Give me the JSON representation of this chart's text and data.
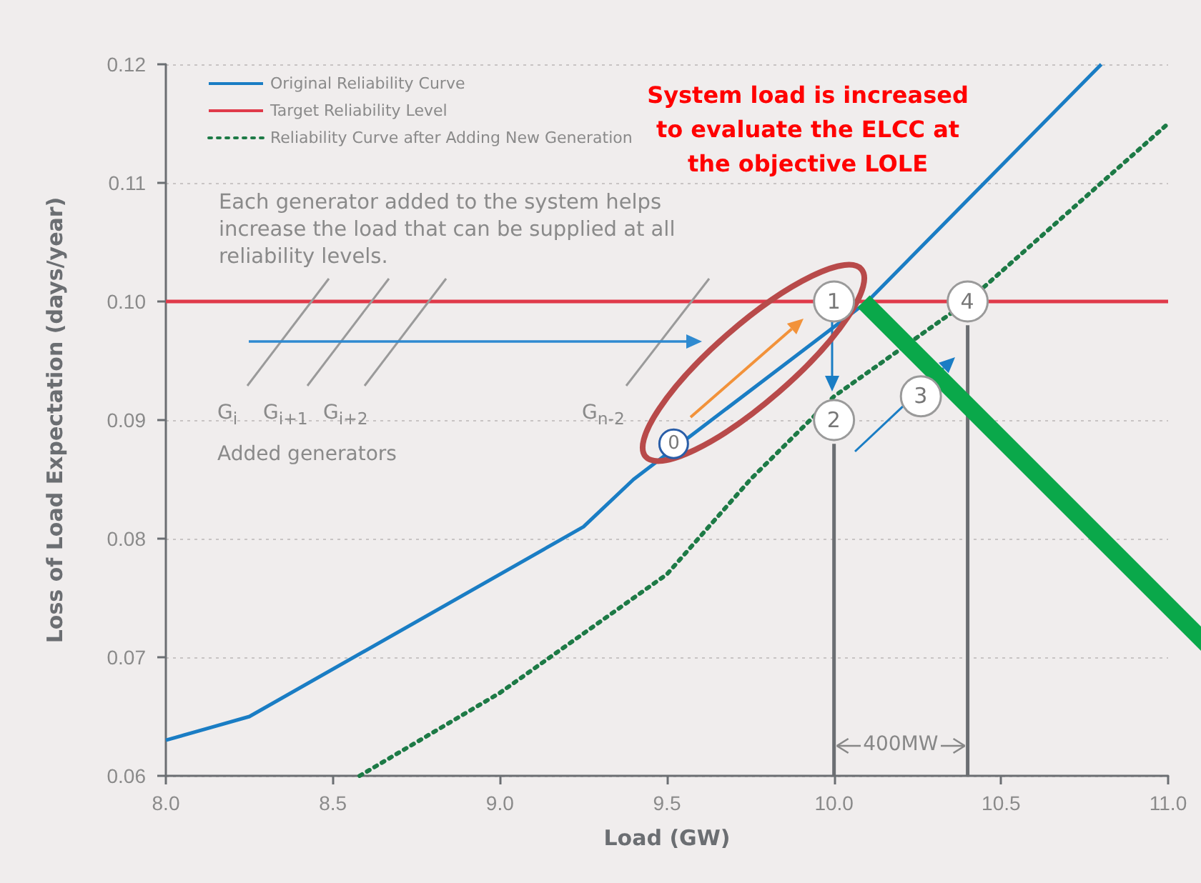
{
  "chart_data": {
    "type": "line",
    "xlabel": "Load (GW)",
    "ylabel": "Loss of Load Expectation (days/year)",
    "xlim": [
      8,
      11
    ],
    "xticks": [
      {
        "value": 8,
        "label": "8.0"
      },
      8.5,
      {
        "value": 9,
        "label": "9.0"
      },
      9.5,
      {
        "value": 10,
        "label": "10.0"
      },
      10.5,
      {
        "value": 11,
        "label": "11.0"
      }
    ],
    "ylim": [
      0.06,
      0.12
    ],
    "yticks": [
      0.06,
      0.07,
      0.08,
      0.09,
      {
        "value": 0.1,
        "label": "0.10"
      },
      0.11,
      0.12
    ],
    "grid": "y",
    "legend": "top left",
    "marker": "none",
    "series": [
      {
        "name": "Original Reliability Curve",
        "color": "#1a7dc4",
        "line_style": "solid",
        "x": [
          8,
          8.25,
          9.25,
          9.4,
          10.1,
          10.8
        ],
        "values": [
          0.063,
          0.065,
          0.081,
          0.085,
          0.1,
          0.12
        ]
      },
      {
        "name": "Target Reliability Level",
        "color": "#e03a4a",
        "line_style": "solid",
        "x": [
          8,
          11
        ],
        "values": [
          0.1,
          0.1
        ]
      },
      {
        "name": "Reliability Curve after Adding New Generation",
        "color": "#1d7a46",
        "line_style": "dotted",
        "x": [
          8.58,
          9.0,
          9.25,
          9.5,
          9.75,
          10.0,
          10.4,
          11.0
        ],
        "values": [
          0.06,
          0.067,
          0.072,
          0.077,
          0.085,
          0.092,
          0.1,
          0.115
        ]
      },
      {
        "color": "#6b6e72",
        "line_style": "solid",
        "x": [
          10,
          10
        ],
        "values": [
          0.06,
          0.088
        ]
      },
      {
        "color": "#6b6e72",
        "line_style": "solid",
        "x": [
          10.4,
          10.4
        ],
        "values": [
          0.06,
          0.098
        ]
      }
    ],
    "annotations": [
      "Each generator added to the system helps increase the load that can be supplied at all reliability levels.",
      "G$_{i}$",
      "G$_{i+1}$",
      "G$_{i+2}$",
      "G$_{n-2}$",
      "Added generators",
      "System load is increased to evaluate the ELCC at the objective LOLE",
      {
        "text": "0",
        "x": 9.52,
        "y": 0.088
      },
      {
        "text": "1",
        "x": 10.0,
        "y": 0.1
      },
      {
        "text": "2",
        "x": 10.0,
        "y": 0.09
      },
      {
        "text": "3",
        "x": 10.26,
        "y": 0.092
      },
      {
        "text": "4",
        "x": 10.4,
        "y": 0.1
      },
      "400MW"
    ]
  }
}
